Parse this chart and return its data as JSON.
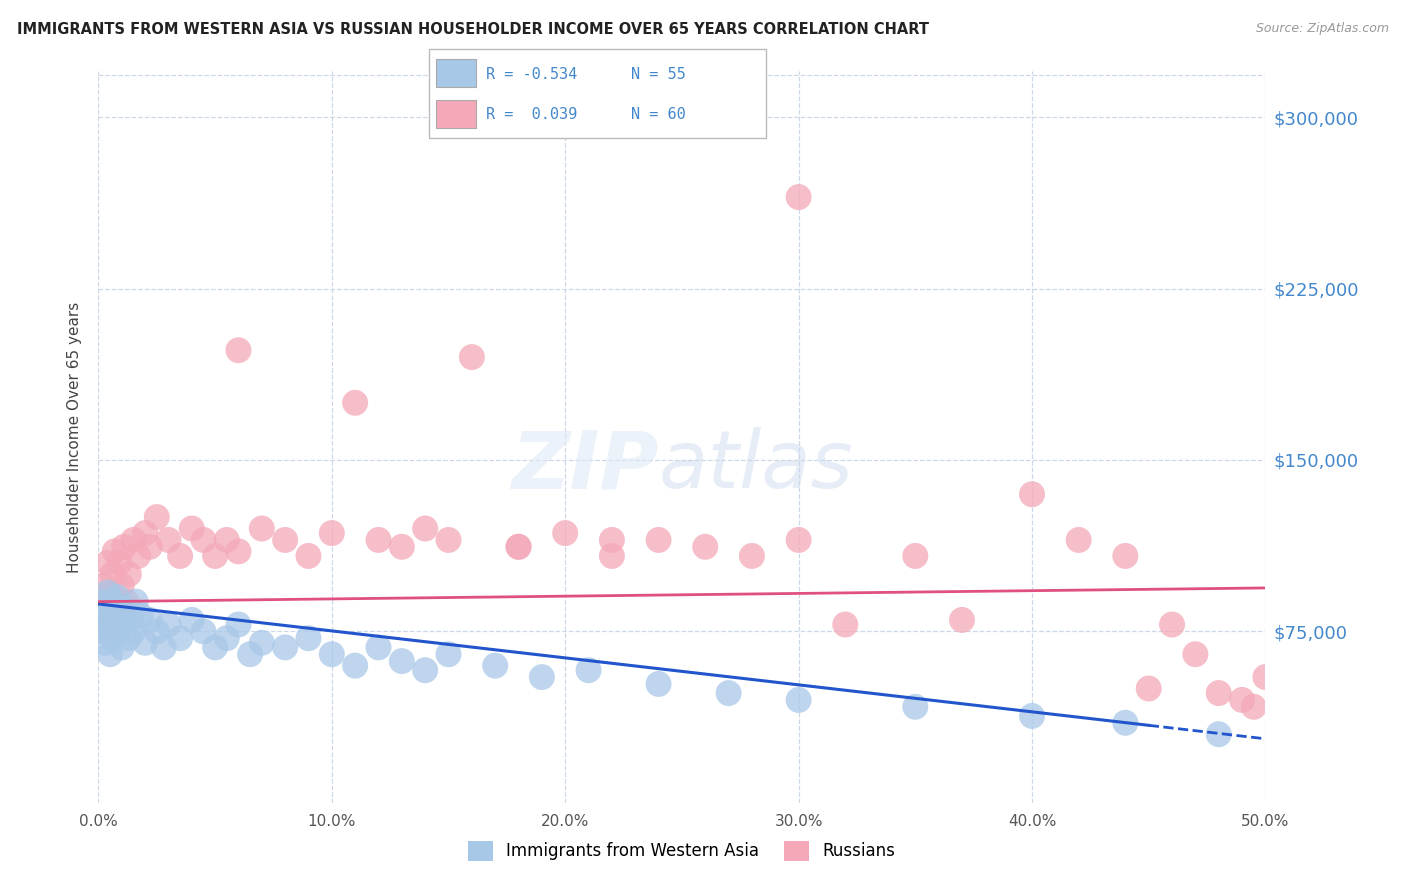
{
  "title": "IMMIGRANTS FROM WESTERN ASIA VS RUSSIAN HOUSEHOLDER INCOME OVER 65 YEARS CORRELATION CHART",
  "source": "Source: ZipAtlas.com",
  "xlabel_vals": [
    0.0,
    10.0,
    20.0,
    30.0,
    40.0,
    50.0
  ],
  "ylabel_vals": [
    75000,
    150000,
    225000,
    300000
  ],
  "ylim": [
    0,
    320000
  ],
  "xlim": [
    0,
    50
  ],
  "blue_color": "#a8c8e8",
  "pink_color": "#f4a8b8",
  "blue_line_color": "#2255cc",
  "pink_line_color": "#e05080",
  "right_label_color": "#4488cc",
  "legend_label_blue": "Immigrants from Western Asia",
  "legend_label_pink": "Russians",
  "ylabel": "Householder Income Over 65 years",
  "blue_R": "-0.534",
  "blue_N": "55",
  "pink_R": "0.039",
  "pink_N": "60",
  "blue_scatter_x": [
    0.1,
    0.2,
    0.2,
    0.3,
    0.3,
    0.4,
    0.4,
    0.5,
    0.5,
    0.6,
    0.6,
    0.7,
    0.8,
    0.8,
    0.9,
    1.0,
    1.0,
    1.1,
    1.2,
    1.3,
    1.4,
    1.5,
    1.6,
    1.8,
    2.0,
    2.2,
    2.5,
    2.8,
    3.0,
    3.5,
    4.0,
    4.5,
    5.0,
    5.5,
    6.0,
    6.5,
    7.0,
    8.0,
    9.0,
    10.0,
    11.0,
    12.0,
    13.0,
    14.0,
    15.0,
    17.0,
    19.0,
    21.0,
    24.0,
    27.0,
    30.0,
    35.0,
    40.0,
    44.0,
    48.0
  ],
  "blue_scatter_y": [
    82000,
    75000,
    88000,
    70000,
    85000,
    78000,
    92000,
    80000,
    65000,
    88000,
    72000,
    85000,
    78000,
    90000,
    75000,
    82000,
    68000,
    85000,
    78000,
    72000,
    80000,
    75000,
    88000,
    82000,
    70000,
    80000,
    75000,
    68000,
    78000,
    72000,
    80000,
    75000,
    68000,
    72000,
    78000,
    65000,
    70000,
    68000,
    72000,
    65000,
    60000,
    68000,
    62000,
    58000,
    65000,
    60000,
    55000,
    58000,
    52000,
    48000,
    45000,
    42000,
    38000,
    35000,
    30000
  ],
  "pink_scatter_x": [
    0.1,
    0.2,
    0.3,
    0.4,
    0.5,
    0.5,
    0.6,
    0.7,
    0.8,
    0.9,
    1.0,
    1.1,
    1.2,
    1.3,
    1.5,
    1.7,
    2.0,
    2.2,
    2.5,
    3.0,
    3.5,
    4.0,
    4.5,
    5.0,
    5.5,
    6.0,
    7.0,
    8.0,
    9.0,
    10.0,
    11.0,
    12.0,
    13.0,
    14.0,
    15.0,
    16.0,
    18.0,
    20.0,
    22.0,
    24.0,
    26.0,
    28.0,
    30.0,
    32.0,
    35.0,
    37.0,
    40.0,
    42.0,
    44.0,
    45.0,
    46.0,
    47.0,
    48.0,
    49.0,
    49.5,
    50.0,
    30.0,
    18.0,
    6.0,
    22.0
  ],
  "pink_scatter_y": [
    80000,
    95000,
    88000,
    105000,
    92000,
    75000,
    100000,
    110000,
    88000,
    105000,
    95000,
    112000,
    88000,
    100000,
    115000,
    108000,
    118000,
    112000,
    125000,
    115000,
    108000,
    120000,
    115000,
    108000,
    115000,
    110000,
    120000,
    115000,
    108000,
    118000,
    175000,
    115000,
    112000,
    120000,
    115000,
    195000,
    112000,
    118000,
    108000,
    115000,
    112000,
    108000,
    115000,
    78000,
    108000,
    80000,
    135000,
    115000,
    108000,
    50000,
    78000,
    65000,
    48000,
    45000,
    42000,
    55000,
    265000,
    112000,
    198000,
    115000
  ]
}
